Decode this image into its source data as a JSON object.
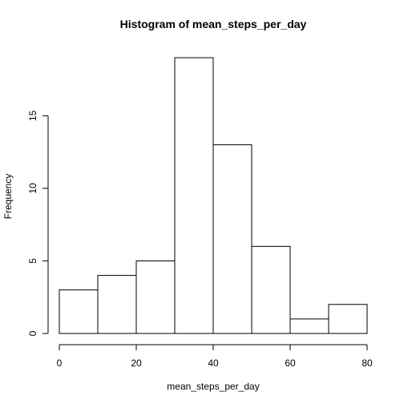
{
  "chart_data": {
    "type": "bar",
    "title": "Histogram of mean_steps_per_day",
    "xlabel": "mean_steps_per_day",
    "ylabel": "Frequency",
    "bins": [
      {
        "start": 0,
        "end": 10,
        "count": 3
      },
      {
        "start": 10,
        "end": 20,
        "count": 4
      },
      {
        "start": 20,
        "end": 30,
        "count": 5
      },
      {
        "start": 30,
        "end": 40,
        "count": 19
      },
      {
        "start": 40,
        "end": 50,
        "count": 13
      },
      {
        "start": 50,
        "end": 60,
        "count": 6
      },
      {
        "start": 60,
        "end": 70,
        "count": 1
      },
      {
        "start": 70,
        "end": 80,
        "count": 2
      }
    ],
    "xlim": [
      0,
      80
    ],
    "ylim": [
      0,
      19
    ],
    "xticks": [
      0,
      20,
      40,
      60,
      80
    ],
    "yticks": [
      0,
      5,
      10,
      15
    ],
    "grid": false,
    "bar_fill": "#ffffff",
    "bar_stroke": "#000000"
  }
}
